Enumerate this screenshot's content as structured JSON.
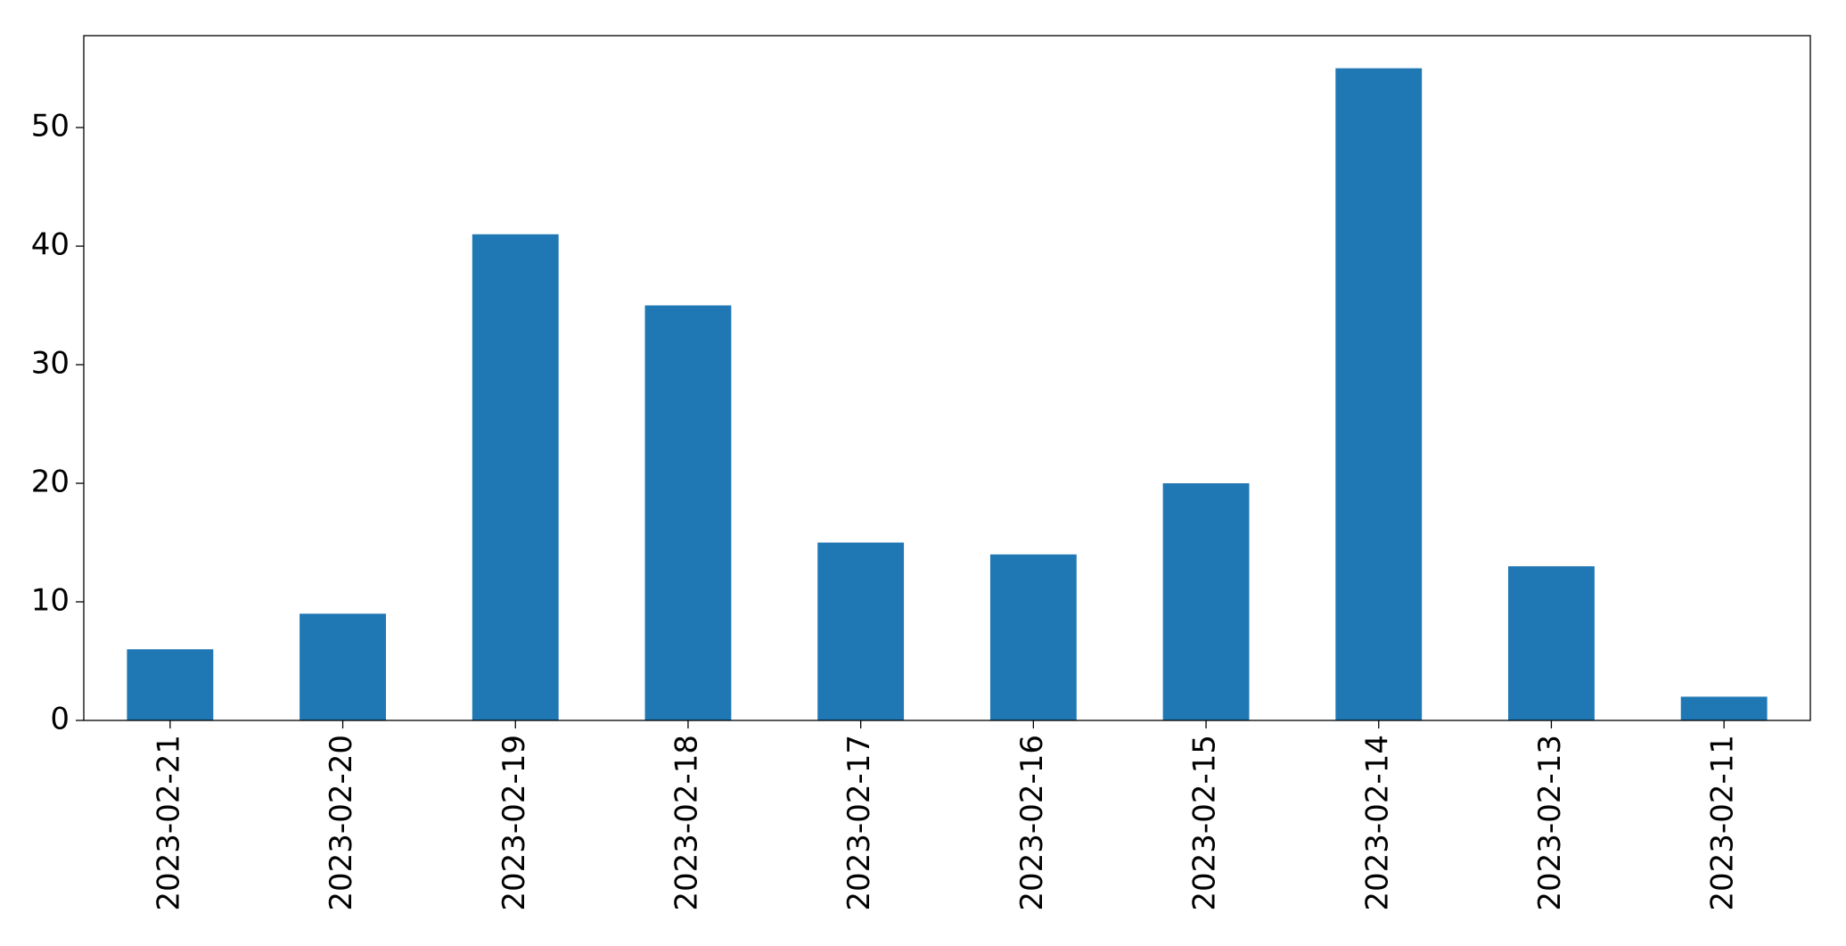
{
  "chart_data": {
    "type": "bar",
    "categories": [
      "2023-02-21",
      "2023-02-20",
      "2023-02-19",
      "2023-02-18",
      "2023-02-17",
      "2023-02-16",
      "2023-02-15",
      "2023-02-14",
      "2023-02-13",
      "2023-02-11"
    ],
    "values": [
      6,
      9,
      41,
      35,
      15,
      14,
      20,
      55,
      13,
      2
    ],
    "color": "#1f77b4",
    "ylim": [
      0,
      57.75
    ],
    "yticks": [
      0,
      10,
      20,
      30,
      40,
      50
    ],
    "grid": false
  }
}
